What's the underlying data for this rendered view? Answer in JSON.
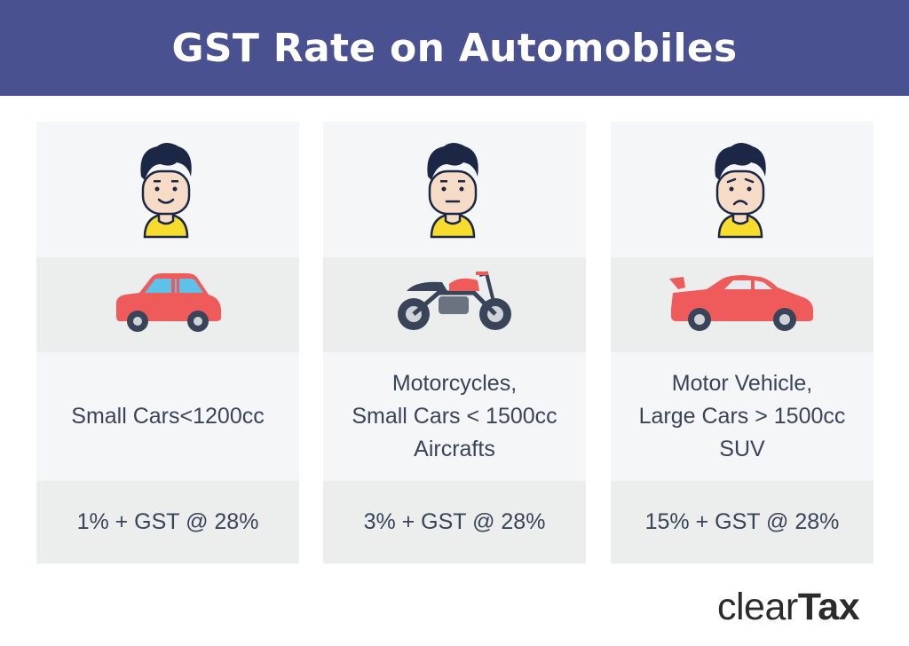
{
  "header": {
    "title": "GST Rate on Automobiles"
  },
  "columns": [
    {
      "face": "happy",
      "vehicle": "small-car",
      "label_lines": [
        "Small Cars<1200cc"
      ],
      "rate": "1% + GST @ 28%"
    },
    {
      "face": "neutral",
      "vehicle": "motorcycle",
      "label_lines": [
        "Motorcycles,",
        "Small Cars < 1500cc",
        "Aircrafts"
      ],
      "rate": "3% + GST @ 28%"
    },
    {
      "face": "sad",
      "vehicle": "sports-car",
      "label_lines": [
        "Motor Vehicle,",
        "Large Cars > 1500cc",
        "SUV"
      ],
      "rate": "15% + GST @ 28%"
    }
  ],
  "logo": {
    "part1": "clear",
    "part2": "Tax"
  },
  "colors": {
    "header": "#4a5190",
    "vehicle_red": "#ef5a5a",
    "shirt_yellow": "#f7dc2e",
    "hair": "#1c2645"
  }
}
